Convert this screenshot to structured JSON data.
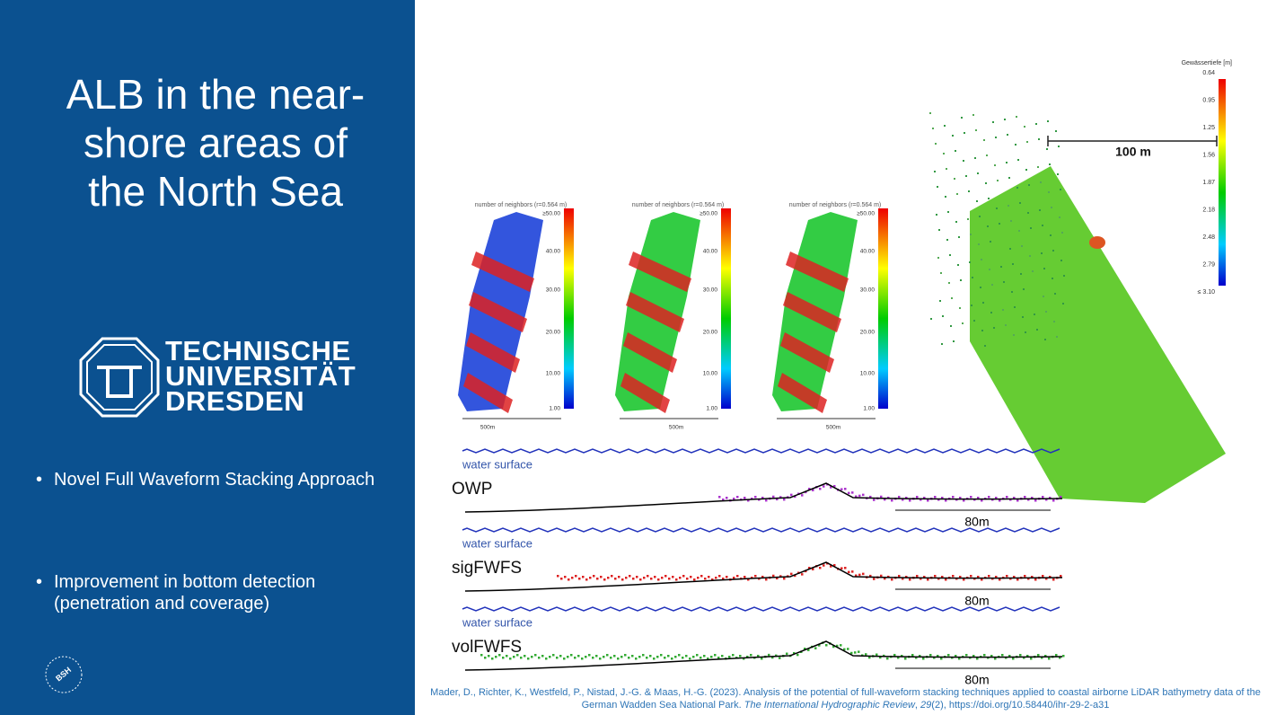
{
  "title": "ALB in the near-shore areas of the North Sea",
  "logo": {
    "lines": [
      "TECHNISCHE",
      "UNIVERSITÄT",
      "DRESDEN"
    ],
    "badge": "BSH"
  },
  "bullets": [
    "Novel Full Waveform Stacking Approach",
    "Improvement in bottom detection (penetration and coverage)"
  ],
  "neighbor_plots": [
    {
      "title": "number of neighbors (r=0.564 m)",
      "ticks": [
        "≥50.00",
        "40.00",
        "30.00",
        "20.00",
        "10.00",
        "1.00"
      ],
      "scale": "500m"
    },
    {
      "title": "number of neighbors (r=0.564 m)",
      "ticks": [
        "≥50.00",
        "40.00",
        "30.00",
        "20.00",
        "10.00",
        "1.00"
      ],
      "scale": "500m"
    },
    {
      "title": "number of neighbors (r=0.564 m)",
      "ticks": [
        "≥50.00",
        "40.00",
        "30.00",
        "20.00",
        "10.00",
        "1.00"
      ],
      "scale": "500m"
    }
  ],
  "depth_map": {
    "title": "Gewässertiefe [m]",
    "ticks": [
      "0.64",
      "0.95",
      "1.25",
      "1.56",
      "1.87",
      "2.18",
      "2.48",
      "2.79",
      "≤ 3.10"
    ],
    "scale": "100 m"
  },
  "profiles": [
    {
      "surface": "water surface",
      "name": "OWP",
      "scale": "80m"
    },
    {
      "surface": "water surface",
      "name": "sigFWFS",
      "scale": "80m"
    },
    {
      "surface": "water surface",
      "name": "volFWFS",
      "scale": "80m"
    }
  ],
  "citation": {
    "authors": "Mader, D., Richter, K., Westfeld, P., Nistad, J.-G. & Maas, H.-G. (2023). Analysis of the potential of full-waveform stacking techniques applied to coastal airborne LiDAR bathymetry data of the German Wadden Sea National Park. ",
    "journal": "The International Hydrographic Review",
    "sep": ", ",
    "volume": "29",
    "rest": "(2), https://doi.org/10.58440/ihr-29-2-a31"
  }
}
